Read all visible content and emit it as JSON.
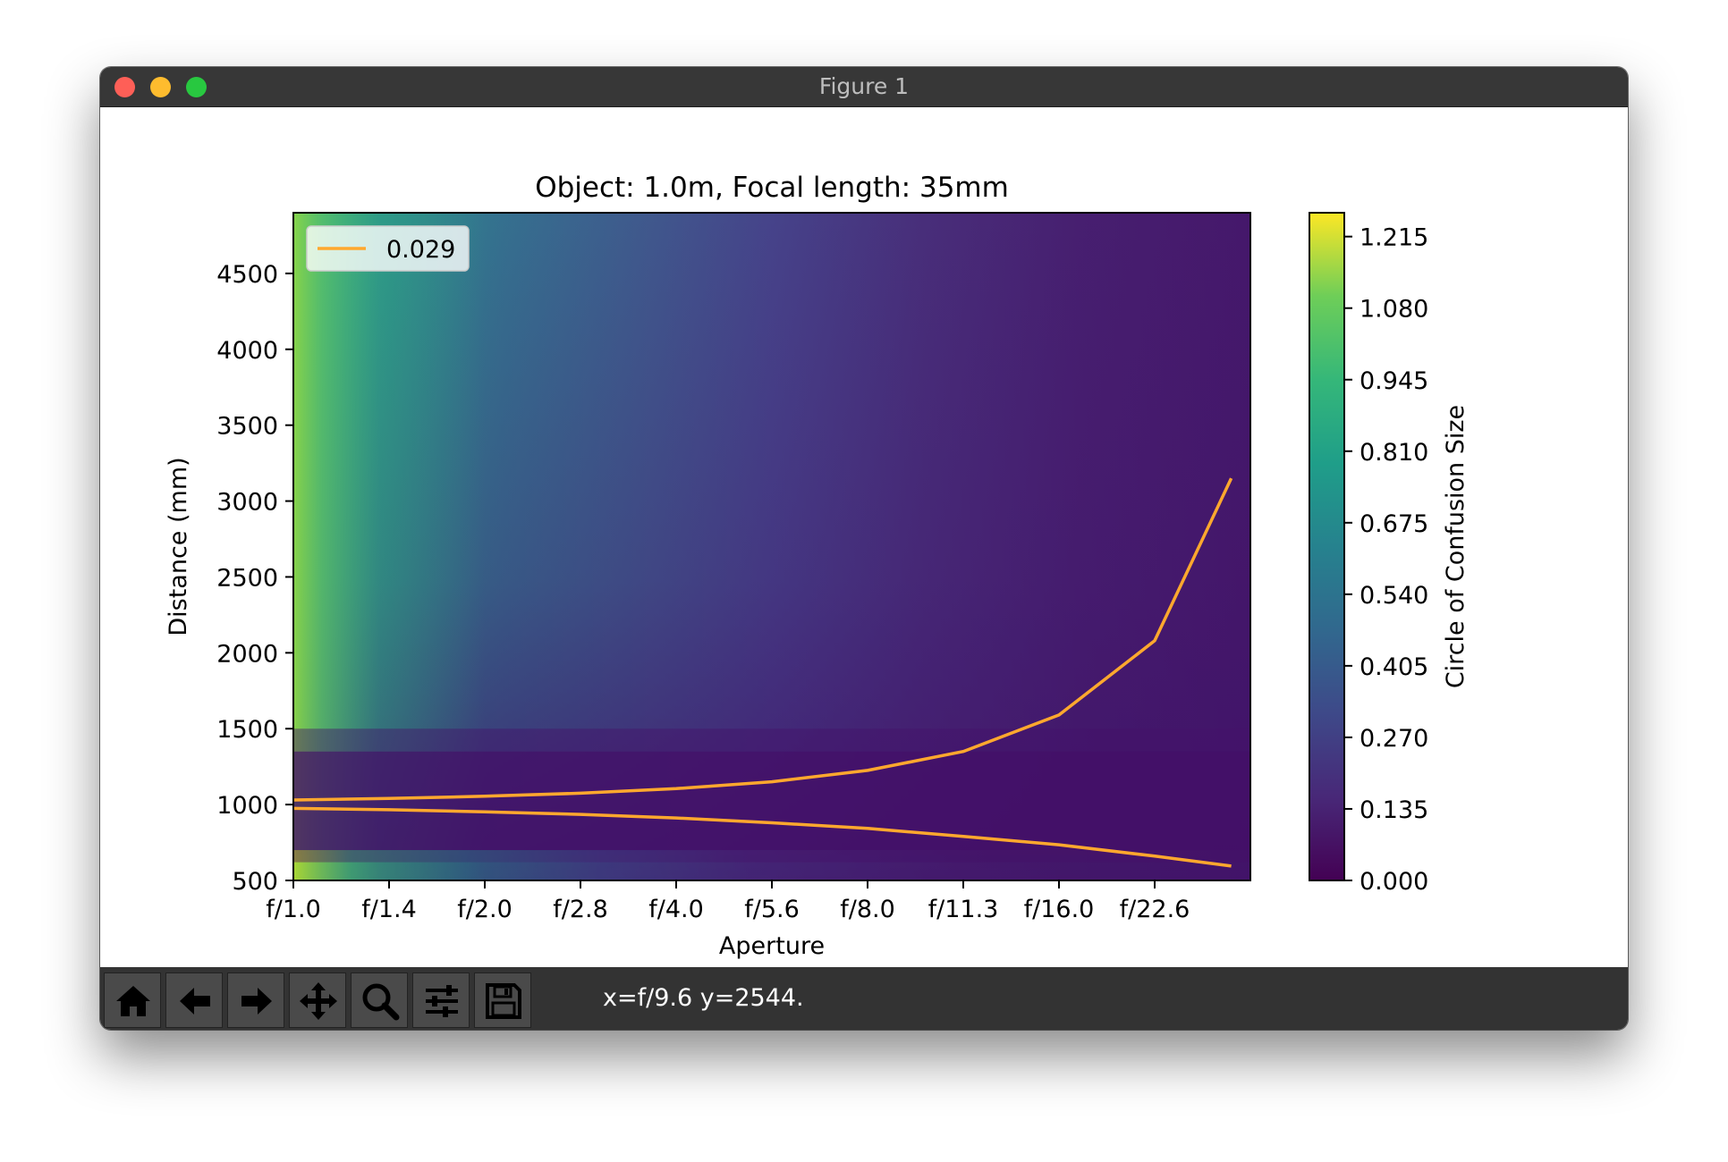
{
  "window": {
    "title": "Figure 1",
    "status_text": "x=f/9.6 y=2544."
  },
  "toolbar": {
    "buttons": [
      {
        "name": "home-button",
        "icon": "home-icon"
      },
      {
        "name": "back-button",
        "icon": "arrow-left-icon"
      },
      {
        "name": "forward-button",
        "icon": "arrow-right-icon"
      },
      {
        "name": "pan-button",
        "icon": "move-icon"
      },
      {
        "name": "zoom-button",
        "icon": "magnifier-icon"
      },
      {
        "name": "configure-subplots-button",
        "icon": "sliders-icon"
      },
      {
        "name": "save-button",
        "icon": "floppy-disk-icon"
      }
    ]
  },
  "chart_data": {
    "type": "heatmap",
    "title": "Object: 1.0m, Focal length: 35mm",
    "xlabel": "Aperture",
    "ylabel": "Distance (mm)",
    "x_tick_labels": [
      "f/1.0",
      "f/1.4",
      "f/2.0",
      "f/2.8",
      "f/4.0",
      "f/5.6",
      "f/8.0",
      "f/11.3",
      "f/16.0",
      "f/22.6"
    ],
    "ylim": [
      500,
      4900
    ],
    "y_ticks": [
      500,
      1000,
      1500,
      2000,
      2500,
      3000,
      3500,
      4000,
      4500
    ],
    "colorbar": {
      "label": "Circle of Confusion Size",
      "colormap": "viridis",
      "range": [
        0.0,
        1.26
      ],
      "ticks": [
        "0.000",
        "0.135",
        "0.270",
        "0.405",
        "0.540",
        "0.675",
        "0.810",
        "0.945",
        "1.080",
        "1.215"
      ]
    },
    "legend": {
      "position": "upper-left",
      "entries": [
        {
          "label": "0.029",
          "color": "#ffa82e"
        }
      ]
    },
    "contour_level": 0.029,
    "series": [
      {
        "name": "0.029",
        "part": "far-limit",
        "color": "#ffa82e",
        "x_stop": [
          0,
          1,
          2,
          3,
          4,
          5,
          6,
          7,
          8,
          9,
          9.8
        ],
        "y": [
          1030,
          1040,
          1055,
          1075,
          1105,
          1150,
          1225,
          1350,
          1590,
          2080,
          3150
        ]
      },
      {
        "name": "0.029",
        "part": "near-limit",
        "color": "#ffa82e",
        "x_stop": [
          0,
          1,
          2,
          3,
          4,
          5,
          6,
          7,
          8,
          9,
          9.8
        ],
        "y": [
          975,
          966,
          952,
          935,
          912,
          880,
          843,
          790,
          735,
          660,
          595
        ]
      }
    ]
  }
}
